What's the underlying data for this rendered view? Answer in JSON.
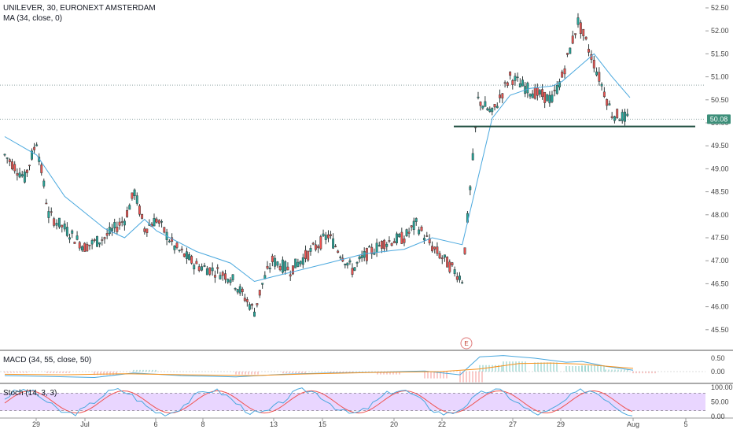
{
  "header": {
    "title": "UNILEVER, 30, EURONEXT AMSTERDAM",
    "ma_label": "MA (34, close, 0)",
    "macd_label": "MACD (34, 55, close, 50)",
    "stoch_label": "Stoch (14, 3, 3)"
  },
  "earnings_marker": "E",
  "colors": {
    "up": "#26a69a",
    "down": "#ef5350",
    "candle_body": "#2f3a3a",
    "ma": "#4aa8de",
    "macd_line": "#4aa8de",
    "macd_signal": "#f7931e",
    "stoch_k": "#4aa8de",
    "stoch_d": "#ef5350",
    "stoch_band": "#e1c8ff",
    "support_line": "#1e4d3f",
    "last_price_bg": "#3d8f7a",
    "axis_text": "#444444"
  },
  "chart_data": [
    {
      "type": "candlestick",
      "title": "UNILEVER, 30, EURONEXT AMSTERDAM",
      "series_name": "UNILEVER",
      "overlay": "MA (34, close, 0)",
      "x_tick_labels": [
        "29",
        "Jul",
        "6",
        "8",
        "13",
        "15",
        "20",
        "22",
        "27",
        "29",
        "Aug",
        "5"
      ],
      "y_ticks": [
        45.5,
        46.0,
        46.5,
        47.0,
        47.5,
        48.0,
        48.5,
        49.0,
        49.5,
        50.0,
        50.5,
        51.0,
        51.5,
        52.0,
        52.5
      ],
      "y_tick_labels": [
        "45.50",
        "46.00",
        "46.50",
        "47.00",
        "47.50",
        "48.00",
        "48.50",
        "49.00",
        "49.50",
        "50.00",
        "50.50",
        "51.00",
        "51.50",
        "52.00",
        "52.50"
      ],
      "ylim": [
        45.25,
        52.7
      ],
      "last_price": "50.08",
      "support_level": 49.92,
      "reference_levels": [
        50.82,
        50.08
      ],
      "close_path": [
        [
          "Jun 26",
          49.3
        ],
        [
          "Jun 27",
          48.8
        ],
        [
          "Jun 28",
          49.6
        ],
        [
          "Jun 29",
          48.0
        ],
        [
          "Jun 30",
          47.7
        ],
        [
          "Jul 1",
          47.3
        ],
        [
          "Jul 2",
          47.5
        ],
        [
          "Jul 3",
          47.9
        ],
        [
          "Jul 4",
          48.5
        ],
        [
          "Jul 5",
          47.7
        ],
        [
          "Jul 6",
          47.9
        ],
        [
          "Jul 7",
          47.3
        ],
        [
          "Jul 8",
          46.9
        ],
        [
          "Jul 9",
          46.8
        ],
        [
          "Jul 10",
          46.65
        ],
        [
          "Jul 11",
          45.9
        ],
        [
          "Jul 12",
          46.5
        ],
        [
          "Jul 13",
          47.0
        ],
        [
          "Jul 14",
          46.8
        ],
        [
          "Jul 15",
          47.55
        ],
        [
          "Jul 16",
          46.8
        ],
        [
          "Jul 17",
          47.1
        ],
        [
          "Jul 18",
          47.4
        ],
        [
          "Jul 19",
          47.5
        ],
        [
          "Jul 20",
          47.8
        ],
        [
          "Jul 21",
          47.3
        ],
        [
          "Jul 22",
          46.6
        ],
        [
          "Jul 23",
          50.5
        ],
        [
          "Jul 24",
          50.2
        ],
        [
          "Jul 25",
          51.0
        ],
        [
          "Jul 26",
          50.7
        ],
        [
          "Jul 27",
          50.5
        ],
        [
          "Jul 28",
          51.0
        ],
        [
          "Jul 29",
          52.2
        ],
        [
          "Jul 30",
          51.3
        ],
        [
          "Jul 31",
          50.2
        ],
        [
          "Aug 1",
          50.08
        ]
      ],
      "ma_path": [
        [
          "Jun 26",
          49.7
        ],
        [
          "Jun 28",
          49.3
        ],
        [
          "Jun 30",
          48.4
        ],
        [
          "Jul 2",
          47.7
        ],
        [
          "Jul 3",
          47.5
        ],
        [
          "Jul 5",
          47.9
        ],
        [
          "Jul 6",
          47.65
        ],
        [
          "Jul 8",
          47.2
        ],
        [
          "Jul 10",
          46.95
        ],
        [
          "Jul 11",
          46.55
        ],
        [
          "Jul 13",
          46.65
        ],
        [
          "Jul 15",
          46.95
        ],
        [
          "Jul 17",
          47.15
        ],
        [
          "Jul 19",
          47.25
        ],
        [
          "Jul 21",
          47.5
        ],
        [
          "Jul 22",
          47.35
        ],
        [
          "Jul 24",
          50.1
        ],
        [
          "Jul 25",
          50.6
        ],
        [
          "Jul 26",
          50.75
        ],
        [
          "Jul 27",
          50.8
        ],
        [
          "Jul 28",
          50.9
        ],
        [
          "Jul 29",
          51.2
        ],
        [
          "Jul 30",
          51.5
        ],
        [
          "Jul 31",
          51.0
        ],
        [
          "Aug 1",
          50.55
        ]
      ]
    },
    {
      "type": "line",
      "title": "MACD (34, 55, close, 50)",
      "y_tick_labels": [
        "0.00",
        "0.50"
      ],
      "y_ticks": [
        0.0,
        0.5
      ],
      "ylim": [
        -0.3,
        0.85
      ]
    },
    {
      "type": "line",
      "title": "Stoch (14, 3, 3)",
      "y_tick_labels": [
        "0.00",
        "50.00",
        "100.00"
      ],
      "y_ticks": [
        0,
        50,
        100
      ],
      "ylim": [
        0,
        100
      ],
      "band": [
        20,
        80
      ]
    }
  ]
}
